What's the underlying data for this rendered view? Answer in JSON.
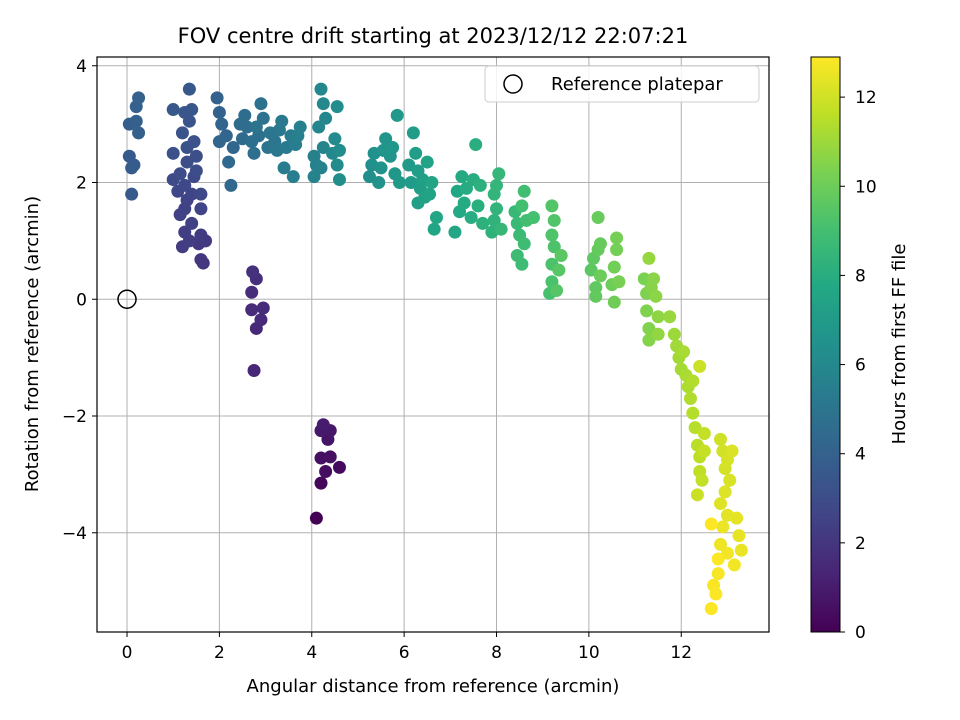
{
  "chart_data": {
    "type": "scatter",
    "title": "FOV centre drift starting at 2023/12/12 22:07:21",
    "xlabel": "Angular distance from reference (arcmin)",
    "ylabel": "Rotation from reference (arcmin)",
    "xlim": [
      -0.65,
      13.9
    ],
    "ylim": [
      -5.7,
      4.15
    ],
    "x_ticks": [
      0,
      2,
      4,
      6,
      8,
      10,
      12
    ],
    "x_tick_labels": [
      "0",
      "2",
      "4",
      "6",
      "8",
      "10",
      "12"
    ],
    "y_ticks": [
      -4,
      -2,
      0,
      2,
      4
    ],
    "y_tick_labels": [
      "−4",
      "−2",
      "0",
      "2",
      "4"
    ],
    "grid": true,
    "legend": {
      "placement": "top-right",
      "entries": [
        "Reference platepar"
      ]
    },
    "reference_point": {
      "x": 0,
      "y": 0
    },
    "colorbar": {
      "label": "Hours from first FF file",
      "colormap": "viridis",
      "range": [
        0,
        12.9
      ],
      "ticks": [
        0,
        2,
        4,
        6,
        8,
        10,
        12
      ],
      "tick_labels": [
        "0",
        "2",
        "4",
        "6",
        "8",
        "10",
        "12"
      ]
    },
    "points_xyc": [
      [
        4.1,
        -3.75,
        0.05
      ],
      [
        4.2,
        -3.15,
        0.2
      ],
      [
        4.6,
        -2.88,
        0.35
      ],
      [
        4.3,
        -2.95,
        0.45
      ],
      [
        4.2,
        -2.72,
        0.55
      ],
      [
        4.4,
        -2.7,
        0.6
      ],
      [
        4.35,
        -2.4,
        0.7
      ],
      [
        4.4,
        -2.25,
        0.8
      ],
      [
        4.2,
        -2.25,
        0.9
      ],
      [
        4.25,
        -2.15,
        1.0
      ],
      [
        2.75,
        -1.22,
        1.4
      ],
      [
        2.8,
        -0.5,
        1.5
      ],
      [
        2.9,
        -0.35,
        1.55
      ],
      [
        2.7,
        -0.18,
        1.6
      ],
      [
        2.95,
        -0.15,
        1.65
      ],
      [
        2.7,
        0.12,
        1.7
      ],
      [
        2.8,
        0.35,
        1.75
      ],
      [
        2.72,
        0.47,
        1.8
      ],
      [
        1.65,
        0.62,
        2.0
      ],
      [
        1.6,
        0.68,
        2.05
      ],
      [
        1.55,
        0.95,
        2.1
      ],
      [
        1.7,
        1.0,
        2.15
      ],
      [
        1.6,
        1.1,
        2.2
      ],
      [
        1.2,
        0.9,
        2.25
      ],
      [
        1.35,
        1.0,
        2.3
      ],
      [
        1.25,
        1.15,
        2.35
      ],
      [
        1.4,
        1.3,
        2.4
      ],
      [
        1.15,
        1.45,
        2.45
      ],
      [
        1.25,
        1.55,
        2.5
      ],
      [
        1.3,
        1.7,
        2.55
      ],
      [
        1.6,
        1.55,
        2.6
      ],
      [
        1.4,
        1.8,
        2.65
      ],
      [
        1.1,
        1.85,
        2.7
      ],
      [
        1.25,
        1.95,
        2.75
      ],
      [
        1.6,
        1.8,
        2.8
      ],
      [
        1.45,
        2.1,
        2.85
      ],
      [
        1.0,
        2.05,
        2.9
      ],
      [
        1.15,
        2.15,
        2.95
      ],
      [
        1.5,
        2.2,
        3.0
      ],
      [
        1.3,
        2.35,
        3.05
      ],
      [
        1.5,
        2.45,
        3.1
      ],
      [
        1.0,
        2.5,
        3.15
      ],
      [
        1.3,
        2.6,
        3.2
      ],
      [
        1.45,
        2.7,
        3.25
      ],
      [
        1.2,
        2.85,
        3.3
      ],
      [
        1.35,
        3.05,
        3.35
      ],
      [
        1.25,
        3.2,
        3.4
      ],
      [
        1.4,
        3.25,
        3.45
      ],
      [
        1.0,
        3.25,
        3.5
      ],
      [
        1.35,
        3.6,
        3.55
      ],
      [
        0.1,
        1.8,
        3.6
      ],
      [
        0.05,
        2.45,
        3.65
      ],
      [
        0.15,
        2.3,
        3.7
      ],
      [
        0.1,
        2.25,
        3.75
      ],
      [
        0.05,
        3.0,
        3.8
      ],
      [
        0.2,
        3.05,
        3.85
      ],
      [
        0.25,
        2.85,
        3.9
      ],
      [
        0.2,
        3.3,
        3.95
      ],
      [
        0.25,
        3.45,
        4.0
      ],
      [
        1.95,
        3.45,
        4.05
      ],
      [
        2.0,
        3.2,
        4.1
      ],
      [
        2.05,
        3.0,
        4.15
      ],
      [
        2.15,
        2.8,
        4.2
      ],
      [
        2.0,
        2.7,
        4.25
      ],
      [
        2.3,
        2.6,
        4.3
      ],
      [
        2.2,
        2.35,
        4.35
      ],
      [
        2.25,
        1.95,
        4.4
      ],
      [
        2.5,
        2.75,
        4.45
      ],
      [
        2.45,
        3.0,
        4.5
      ],
      [
        2.6,
        2.95,
        4.55
      ],
      [
        2.55,
        3.15,
        4.6
      ],
      [
        2.7,
        2.7,
        4.65
      ],
      [
        2.75,
        2.5,
        4.7
      ],
      [
        2.85,
        2.8,
        4.75
      ],
      [
        2.9,
        3.35,
        4.8
      ],
      [
        2.95,
        3.1,
        4.85
      ],
      [
        2.8,
        2.95,
        4.9
      ],
      [
        3.05,
        2.6,
        4.95
      ],
      [
        3.1,
        2.85,
        5.0
      ],
      [
        3.2,
        2.7,
        5.05
      ],
      [
        3.25,
        2.55,
        5.1
      ],
      [
        3.3,
        2.9,
        5.15
      ],
      [
        3.35,
        3.05,
        5.2
      ],
      [
        3.45,
        2.6,
        5.25
      ],
      [
        3.55,
        2.8,
        5.3
      ],
      [
        3.4,
        2.25,
        5.35
      ],
      [
        3.6,
        2.1,
        5.4
      ],
      [
        3.65,
        2.65,
        5.45
      ],
      [
        3.7,
        2.8,
        5.5
      ],
      [
        3.75,
        2.95,
        5.55
      ],
      [
        4.05,
        2.45,
        5.6
      ],
      [
        4.1,
        2.3,
        5.65
      ],
      [
        4.05,
        2.1,
        5.7
      ],
      [
        4.2,
        2.25,
        5.75
      ],
      [
        4.25,
        2.6,
        5.8
      ],
      [
        4.15,
        2.95,
        5.85
      ],
      [
        4.3,
        3.1,
        5.9
      ],
      [
        4.2,
        3.6,
        5.95
      ],
      [
        4.25,
        3.35,
        6.0
      ],
      [
        4.45,
        2.5,
        6.05
      ],
      [
        4.5,
        2.75,
        6.1
      ],
      [
        4.55,
        2.3,
        6.15
      ],
      [
        4.6,
        2.55,
        6.2
      ],
      [
        4.55,
        3.3,
        6.25
      ],
      [
        4.6,
        2.05,
        6.3
      ],
      [
        5.25,
        2.1,
        6.35
      ],
      [
        5.3,
        2.3,
        6.4
      ],
      [
        5.35,
        2.5,
        6.45
      ],
      [
        5.45,
        2.0,
        6.5
      ],
      [
        5.5,
        2.25,
        6.55
      ],
      [
        5.55,
        2.55,
        6.6
      ],
      [
        5.6,
        2.75,
        6.65
      ],
      [
        5.7,
        2.45,
        6.7
      ],
      [
        5.75,
        2.6,
        6.75
      ],
      [
        5.8,
        2.15,
        6.8
      ],
      [
        5.85,
        3.15,
        6.85
      ],
      [
        5.9,
        2.0,
        6.9
      ],
      [
        6.1,
        2.3,
        6.95
      ],
      [
        6.15,
        2.0,
        7.0
      ],
      [
        6.2,
        2.85,
        7.05
      ],
      [
        6.25,
        2.5,
        7.1
      ],
      [
        6.3,
        2.2,
        7.15
      ],
      [
        6.35,
        1.9,
        7.2
      ],
      [
        6.3,
        1.65,
        7.25
      ],
      [
        6.4,
        2.05,
        7.3
      ],
      [
        6.45,
        1.75,
        7.35
      ],
      [
        6.5,
        2.35,
        7.4
      ],
      [
        6.55,
        1.8,
        7.45
      ],
      [
        6.6,
        2.0,
        7.5
      ],
      [
        6.65,
        1.2,
        7.55
      ],
      [
        6.7,
        1.4,
        7.6
      ],
      [
        7.1,
        1.15,
        7.65
      ],
      [
        7.15,
        1.85,
        7.7
      ],
      [
        7.2,
        1.5,
        7.75
      ],
      [
        7.25,
        2.1,
        7.8
      ],
      [
        7.3,
        1.65,
        7.85
      ],
      [
        7.35,
        1.9,
        7.9
      ],
      [
        7.45,
        1.4,
        7.95
      ],
      [
        7.5,
        2.05,
        8.0
      ],
      [
        7.55,
        2.65,
        8.05
      ],
      [
        7.6,
        1.6,
        8.1
      ],
      [
        7.65,
        1.95,
        8.15
      ],
      [
        7.7,
        1.3,
        8.2
      ],
      [
        7.9,
        1.15,
        8.25
      ],
      [
        7.95,
        1.35,
        8.3
      ],
      [
        8.0,
        1.55,
        8.35
      ],
      [
        7.95,
        1.8,
        8.4
      ],
      [
        8.0,
        1.95,
        8.45
      ],
      [
        8.05,
        2.15,
        8.5
      ],
      [
        8.1,
        1.2,
        8.55
      ],
      [
        8.4,
        1.5,
        8.6
      ],
      [
        8.45,
        1.3,
        8.65
      ],
      [
        8.5,
        1.1,
        8.7
      ],
      [
        8.45,
        0.75,
        8.75
      ],
      [
        8.55,
        0.6,
        8.8
      ],
      [
        8.6,
        0.95,
        8.85
      ],
      [
        8.6,
        1.85,
        8.9
      ],
      [
        8.55,
        1.6,
        8.95
      ],
      [
        8.65,
        1.35,
        9.0
      ],
      [
        8.8,
        1.4,
        9.05
      ],
      [
        9.15,
        0.1,
        9.1
      ],
      [
        9.2,
        0.3,
        9.15
      ],
      [
        9.2,
        0.6,
        9.2
      ],
      [
        9.25,
        0.9,
        9.25
      ],
      [
        9.2,
        1.1,
        9.3
      ],
      [
        9.25,
        1.35,
        9.35
      ],
      [
        9.2,
        1.6,
        9.4
      ],
      [
        9.3,
        0.15,
        9.45
      ],
      [
        9.35,
        0.5,
        9.5
      ],
      [
        9.4,
        0.75,
        9.55
      ],
      [
        10.05,
        0.5,
        9.6
      ],
      [
        10.1,
        0.7,
        9.65
      ],
      [
        10.15,
        0.2,
        9.7
      ],
      [
        10.15,
        0.05,
        9.75
      ],
      [
        10.2,
        0.85,
        9.8
      ],
      [
        10.25,
        0.95,
        9.85
      ],
      [
        10.2,
        1.4,
        9.9
      ],
      [
        10.25,
        0.4,
        9.95
      ],
      [
        10.5,
        0.25,
        10.0
      ],
      [
        10.55,
        -0.05,
        10.05
      ],
      [
        10.55,
        0.55,
        10.1
      ],
      [
        10.6,
        0.85,
        10.15
      ],
      [
        10.6,
        1.05,
        10.2
      ],
      [
        10.65,
        0.3,
        10.25
      ],
      [
        11.2,
        0.35,
        10.3
      ],
      [
        11.25,
        0.1,
        10.35
      ],
      [
        11.25,
        -0.2,
        10.4
      ],
      [
        11.3,
        -0.5,
        10.45
      ],
      [
        11.3,
        -0.7,
        10.5
      ],
      [
        11.35,
        0.2,
        10.55
      ],
      [
        11.4,
        0.35,
        10.6
      ],
      [
        11.45,
        0.05,
        10.65
      ],
      [
        11.5,
        -0.3,
        10.7
      ],
      [
        11.5,
        -0.6,
        10.8
      ],
      [
        11.3,
        0.7,
        10.85
      ],
      [
        11.75,
        -0.3,
        10.9
      ],
      [
        11.85,
        -0.6,
        11.0
      ],
      [
        11.9,
        -0.8,
        11.05
      ],
      [
        11.95,
        -1.0,
        11.1
      ],
      [
        12.0,
        -1.2,
        11.15
      ],
      [
        12.05,
        -0.9,
        11.2
      ],
      [
        12.1,
        -1.3,
        11.25
      ],
      [
        12.15,
        -1.5,
        11.3
      ],
      [
        12.2,
        -1.7,
        11.35
      ],
      [
        12.25,
        -1.4,
        11.4
      ],
      [
        12.25,
        -1.95,
        11.45
      ],
      [
        12.3,
        -2.2,
        11.5
      ],
      [
        12.35,
        -2.5,
        11.55
      ],
      [
        12.4,
        -2.7,
        11.6
      ],
      [
        12.4,
        -2.95,
        11.65
      ],
      [
        12.45,
        -3.1,
        11.7
      ],
      [
        12.5,
        -2.3,
        11.75
      ],
      [
        12.5,
        -2.6,
        11.8
      ],
      [
        12.35,
        -3.35,
        11.85
      ],
      [
        12.4,
        -1.15,
        11.9
      ],
      [
        12.85,
        -2.4,
        11.95
      ],
      [
        12.9,
        -2.6,
        12.0
      ],
      [
        12.95,
        -2.9,
        12.05
      ],
      [
        13.0,
        -2.75,
        12.1
      ],
      [
        13.05,
        -3.1,
        12.15
      ],
      [
        13.1,
        -2.6,
        12.2
      ],
      [
        12.95,
        -3.3,
        12.25
      ],
      [
        12.85,
        -3.5,
        12.3
      ],
      [
        13.0,
        -3.7,
        12.35
      ],
      [
        13.2,
        -3.75,
        12.4
      ],
      [
        13.25,
        -4.05,
        12.45
      ],
      [
        13.3,
        -4.3,
        12.5
      ],
      [
        12.9,
        -3.9,
        12.55
      ],
      [
        12.85,
        -4.2,
        12.6
      ],
      [
        13.0,
        -4.35,
        12.65
      ],
      [
        13.15,
        -4.55,
        12.7
      ],
      [
        12.8,
        -4.7,
        12.75
      ],
      [
        12.7,
        -4.9,
        12.8
      ],
      [
        12.75,
        -5.05,
        12.85
      ],
      [
        12.65,
        -5.3,
        12.87
      ],
      [
        12.8,
        -4.45,
        12.88
      ],
      [
        12.65,
        -3.85,
        12.9
      ]
    ]
  }
}
